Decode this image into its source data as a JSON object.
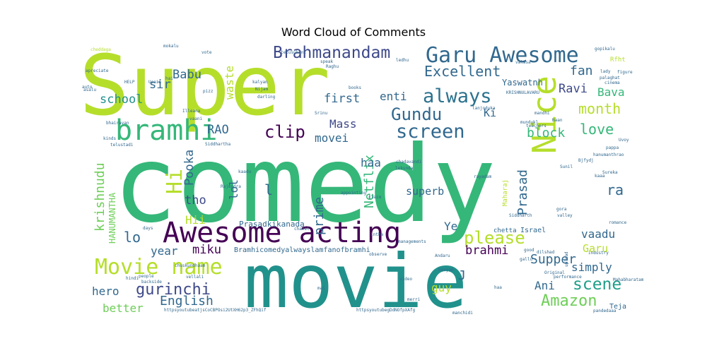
{
  "chart_data": {
    "type": "wordcloud",
    "title": "Word Cloud of Comments",
    "words": [
      {
        "text": "comedy",
        "color": "#35b779"
      },
      {
        "text": "Super",
        "color": "#b5de2b"
      },
      {
        "text": "movie",
        "color": "#21918c"
      },
      {
        "text": "Awesome acting",
        "color": "#440154"
      },
      {
        "text": "Garu Awesome",
        "color": "#31688e"
      },
      {
        "text": "Nice",
        "color": "#b5de2b"
      },
      {
        "text": "bramhi",
        "color": "#35b779"
      },
      {
        "text": "screen",
        "color": "#31688e"
      },
      {
        "text": "always",
        "color": "#2c728e"
      },
      {
        "text": "Brahmanandam",
        "color": "#3e4989"
      },
      {
        "text": "Movie name",
        "color": "#b5de2b"
      },
      {
        "text": "Excellent",
        "color": "#31688e"
      },
      {
        "text": "Gundu",
        "color": "#31688e"
      },
      {
        "text": "clip",
        "color": "#440154"
      },
      {
        "text": "Hi",
        "color": "#b5de2b"
      },
      {
        "text": "please",
        "color": "#b5de2b"
      },
      {
        "text": "scene",
        "color": "#1f9e89"
      },
      {
        "text": "gurinchi",
        "color": "#3e4989"
      },
      {
        "text": "Amazon",
        "color": "#6ece58"
      },
      {
        "text": "krishnudu",
        "color": "#6ece58"
      },
      {
        "text": "Netflix",
        "color": "#35b779"
      },
      {
        "text": "prime",
        "color": "#31688e"
      },
      {
        "text": "Prasad",
        "color": "#31688e"
      },
      {
        "text": "Supper",
        "color": "#31688e"
      },
      {
        "text": "English",
        "color": "#31688e"
      },
      {
        "text": "block",
        "color": "#35b779"
      },
      {
        "text": "love",
        "color": "#35b779"
      },
      {
        "text": "month",
        "color": "#b5de2b"
      },
      {
        "text": "brahmi",
        "color": "#440154"
      },
      {
        "text": "miku",
        "color": "#440154"
      },
      {
        "text": "first",
        "color": "#31688e"
      },
      {
        "text": "Ravi",
        "color": "#3e4989"
      },
      {
        "text": "fan",
        "color": "#31688e"
      },
      {
        "text": "enti",
        "color": "#31688e"
      },
      {
        "text": "Mass",
        "color": "#3e4989"
      },
      {
        "text": "movei",
        "color": "#31688e"
      },
      {
        "text": "superb",
        "color": "#31688e"
      },
      {
        "text": "haa",
        "color": "#31688e"
      },
      {
        "text": "RAO",
        "color": "#31688e"
      },
      {
        "text": "Pooka",
        "color": "#31688e"
      },
      {
        "text": "tho",
        "color": "#3e4989"
      },
      {
        "text": "lol",
        "color": "#31688e"
      },
      {
        "text": "Babu",
        "color": "#31688e"
      },
      {
        "text": "sir",
        "color": "#31688e"
      },
      {
        "text": "school",
        "color": "#21918c"
      },
      {
        "text": "waste",
        "color": "#b5de2b"
      },
      {
        "text": "Bava",
        "color": "#35b779"
      },
      {
        "text": "Ki",
        "color": "#31688e"
      },
      {
        "text": "ra",
        "color": "#31688e"
      },
      {
        "text": "Ye",
        "color": "#31688e"
      },
      {
        "text": "lo",
        "color": "#31688e"
      },
      {
        "text": "Hii",
        "color": "#b5de2b"
      },
      {
        "text": "year",
        "color": "#31688e"
      },
      {
        "text": "hero",
        "color": "#31688e"
      },
      {
        "text": "better",
        "color": "#6ece58"
      },
      {
        "text": "guy",
        "color": "#b5de2b"
      },
      {
        "text": "Ani",
        "color": "#31688e"
      },
      {
        "text": "simply",
        "color": "#31688e"
      },
      {
        "text": "Garu",
        "color": "#b5de2b"
      },
      {
        "text": "vaadu",
        "color": "#31688e"
      },
      {
        "text": "J",
        "color": "#31688e"
      },
      {
        "text": "l",
        "color": "#31688e"
      },
      {
        "text": "HANUMANTHA",
        "color": "#6ece58"
      },
      {
        "text": "Yaswatnh",
        "color": "#31688e"
      },
      {
        "text": "Prasadkikanada",
        "color": "#31688e"
      },
      {
        "text": "Bramhicomedyalwayslamfanofbramhi",
        "color": "#31688e"
      },
      {
        "text": "Maharaj",
        "color": "#b5de2b"
      },
      {
        "text": "Israel",
        "color": "#31688e"
      },
      {
        "text": "chetta",
        "color": "#31688e"
      },
      {
        "text": "Teja",
        "color": "#31688e"
      },
      {
        "text": "cheddaga",
        "color": "#b5de2b"
      },
      {
        "text": "mokalu",
        "color": "#31688e"
      },
      {
        "text": "telusukoni",
        "color": "#31688e"
      },
      {
        "text": "gopikalu",
        "color": "#31688e"
      },
      {
        "text": "Rfht",
        "color": "#b5de2b"
      },
      {
        "text": "apreciate",
        "color": "#31688e"
      },
      {
        "text": "HELP",
        "color": "#31688e"
      },
      {
        "text": "kalyan",
        "color": "#31688e"
      },
      {
        "text": "Nijam",
        "color": "#31688e"
      },
      {
        "text": "darling",
        "color": "#31688e"
      },
      {
        "text": "books",
        "color": "#31688e"
      },
      {
        "text": "KRISHNULAVARU",
        "color": "#31688e"
      },
      {
        "text": "lady",
        "color": "#31688e"
      },
      {
        "text": "figure",
        "color": "#31688e"
      },
      {
        "text": "Illeana",
        "color": "#31688e"
      },
      {
        "text": "vaani",
        "color": "#31688e"
      },
      {
        "text": "mandhi",
        "color": "#31688e"
      },
      {
        "text": "Siddhartha",
        "color": "#31688e"
      },
      {
        "text": "Srinu",
        "color": "#31688e"
      },
      {
        "text": "teachers",
        "color": "#31688e"
      },
      {
        "text": "bhairavan",
        "color": "#31688e"
      },
      {
        "text": "telustadi",
        "color": "#31688e"
      },
      {
        "text": "kinds",
        "color": "#31688e"
      },
      {
        "text": "Sunil",
        "color": "#31688e"
      },
      {
        "text": "pappa",
        "color": "#31688e"
      },
      {
        "text": "hanumanthrao",
        "color": "#31688e"
      },
      {
        "text": "Uvoy",
        "color": "#31688e"
      },
      {
        "text": "kaadu",
        "color": "#31688e"
      },
      {
        "text": "lekunda",
        "color": "#31688e"
      },
      {
        "text": "chadavandi",
        "color": "#31688e"
      },
      {
        "text": "rayadam",
        "color": "#31688e"
      },
      {
        "text": "Sureka",
        "color": "#31688e"
      },
      {
        "text": "Rajendra",
        "color": "#31688e"
      },
      {
        "text": "appointing",
        "color": "#31688e"
      },
      {
        "text": "claim",
        "color": "#31688e"
      },
      {
        "text": "Siddharth",
        "color": "#31688e"
      },
      {
        "text": "gora",
        "color": "#31688e"
      },
      {
        "text": "valley",
        "color": "#31688e"
      },
      {
        "text": "romance",
        "color": "#31688e"
      },
      {
        "text": "days",
        "color": "#31688e"
      },
      {
        "text": "chanel",
        "color": "#31688e"
      },
      {
        "text": "intha",
        "color": "#31688e"
      },
      {
        "text": "managements",
        "color": "#31688e"
      },
      {
        "text": "chuskundhaam",
        "color": "#31688e"
      },
      {
        "text": "observe",
        "color": "#31688e"
      },
      {
        "text": "Andaru",
        "color": "#31688e"
      },
      {
        "text": "good",
        "color": "#31688e"
      },
      {
        "text": "industry",
        "color": "#31688e"
      },
      {
        "text": "havyam",
        "color": "#31688e"
      },
      {
        "text": "Original",
        "color": "#31688e"
      },
      {
        "text": "performance",
        "color": "#31688e"
      },
      {
        "text": "hindi",
        "color": "#31688e"
      },
      {
        "text": "people",
        "color": "#31688e"
      },
      {
        "text": "backside",
        "color": "#31688e"
      },
      {
        "text": "vellali",
        "color": "#31688e"
      },
      {
        "text": "video",
        "color": "#31688e"
      },
      {
        "text": "mai",
        "color": "#31688e"
      },
      {
        "text": "haa",
        "color": "#31688e"
      },
      {
        "text": "Mahabharatam",
        "color": "#31688e"
      },
      {
        "text": "pandedaaa",
        "color": "#31688e"
      },
      {
        "text": "manchidi",
        "color": "#31688e"
      },
      {
        "text": "merri",
        "color": "#31688e"
      },
      {
        "text": "httpsyoutubeatjsCoCBPOsi2UtXH62p3_ZFhQif",
        "color": "#31688e"
      },
      {
        "text": "httpsyoutubegDdNOfpXAfg",
        "color": "#31688e"
      },
      {
        "text": "ledhu",
        "color": "#31688e"
      },
      {
        "text": "hai",
        "color": "#31688e"
      },
      {
        "text": "pizz",
        "color": "#31688e"
      },
      {
        "text": "auto",
        "color": "#31688e"
      },
      {
        "text": "asalu",
        "color": "#31688e"
      },
      {
        "text": "Usain",
        "color": "#31688e"
      },
      {
        "text": "lanjoduka",
        "color": "#31688e"
      },
      {
        "text": "mundukl",
        "color": "#31688e"
      },
      {
        "text": "vote",
        "color": "#31688e"
      },
      {
        "text": "speak",
        "color": "#31688e"
      },
      {
        "text": "Raghu",
        "color": "#31688e"
      },
      {
        "text": "cinema",
        "color": "#31688e"
      },
      {
        "text": "valasa",
        "color": "#31688e"
      },
      {
        "text": "palaghat",
        "color": "#31688e"
      },
      {
        "text": "dilshad",
        "color": "#31688e"
      },
      {
        "text": "upload",
        "color": "#31688e"
      },
      {
        "text": "Bjfydj",
        "color": "#31688e"
      },
      {
        "text": "kaaa",
        "color": "#31688e"
      },
      {
        "text": "gallu",
        "color": "#31688e"
      },
      {
        "text": "Naan",
        "color": "#31688e"
      }
    ]
  }
}
